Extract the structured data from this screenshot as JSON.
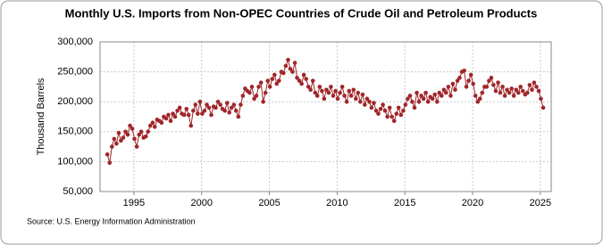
{
  "chart_data": {
    "type": "line",
    "title": "Monthly U.S. Imports from Non-OPEC Countries of Crude Oil and Petroleum Products",
    "y_label": "Thousand Barrels",
    "source": "Source: U.S. Energy Information Administration",
    "color": "#a0262a",
    "grid": true,
    "xlim": [
      1992.5,
      2025.8
    ],
    "xticks": [
      1995,
      2000,
      2005,
      2010,
      2015,
      2020,
      2025
    ],
    "ylim": [
      50000,
      300000
    ],
    "yticks": [
      {
        "value": 50000,
        "label": "50,000"
      },
      {
        "value": 100000,
        "label": "100,000"
      },
      {
        "value": 150000,
        "label": "150,000"
      },
      {
        "value": 200000,
        "label": "200,000"
      },
      {
        "value": 250000,
        "label": "250,000"
      },
      {
        "value": 300000,
        "label": "300,000"
      }
    ],
    "x": [
      1993.04,
      1993.21,
      1993.38,
      1993.54,
      1993.71,
      1993.88,
      1994.04,
      1994.21,
      1994.38,
      1994.54,
      1994.71,
      1994.88,
      1995.04,
      1995.21,
      1995.38,
      1995.54,
      1995.71,
      1995.88,
      1996.04,
      1996.21,
      1996.38,
      1996.54,
      1996.71,
      1996.88,
      1997.04,
      1997.21,
      1997.38,
      1997.54,
      1997.71,
      1997.88,
      1998.04,
      1998.21,
      1998.38,
      1998.54,
      1998.71,
      1998.88,
      1999.04,
      1999.21,
      1999.38,
      1999.54,
      1999.71,
      1999.88,
      2000.04,
      2000.21,
      2000.38,
      2000.54,
      2000.71,
      2000.88,
      2001.04,
      2001.21,
      2001.38,
      2001.54,
      2001.71,
      2001.88,
      2002.04,
      2002.21,
      2002.38,
      2002.54,
      2002.71,
      2002.88,
      2003.04,
      2003.21,
      2003.38,
      2003.54,
      2003.71,
      2003.88,
      2004.04,
      2004.21,
      2004.38,
      2004.54,
      2004.71,
      2004.88,
      2005.04,
      2005.21,
      2005.38,
      2005.54,
      2005.71,
      2005.88,
      2006.04,
      2006.21,
      2006.38,
      2006.54,
      2006.71,
      2006.88,
      2007.04,
      2007.21,
      2007.38,
      2007.54,
      2007.71,
      2007.88,
      2008.04,
      2008.21,
      2008.38,
      2008.54,
      2008.71,
      2008.88,
      2009.04,
      2009.21,
      2009.38,
      2009.54,
      2009.71,
      2009.88,
      2010.04,
      2010.21,
      2010.38,
      2010.54,
      2010.71,
      2010.88,
      2011.04,
      2011.21,
      2011.38,
      2011.54,
      2011.71,
      2011.88,
      2012.04,
      2012.21,
      2012.38,
      2012.54,
      2012.71,
      2012.88,
      2013.04,
      2013.21,
      2013.38,
      2013.54,
      2013.71,
      2013.88,
      2014.04,
      2014.21,
      2014.38,
      2014.54,
      2014.71,
      2014.88,
      2015.04,
      2015.21,
      2015.38,
      2015.54,
      2015.71,
      2015.88,
      2016.04,
      2016.21,
      2016.38,
      2016.54,
      2016.71,
      2016.88,
      2017.04,
      2017.21,
      2017.38,
      2017.54,
      2017.71,
      2017.88,
      2018.04,
      2018.21,
      2018.38,
      2018.54,
      2018.71,
      2018.88,
      2019.04,
      2019.21,
      2019.38,
      2019.54,
      2019.71,
      2019.88,
      2020.04,
      2020.21,
      2020.38,
      2020.54,
      2020.71,
      2020.88,
      2021.04,
      2021.21,
      2021.38,
      2021.54,
      2021.71,
      2021.88,
      2022.04,
      2022.21,
      2022.38,
      2022.54,
      2022.71,
      2022.88,
      2023.04,
      2023.21,
      2023.38,
      2023.54,
      2023.71,
      2023.88,
      2024.04,
      2024.21,
      2024.38,
      2024.54,
      2024.71,
      2024.88,
      2025.04,
      2025.21
    ],
    "values": [
      112000,
      98000,
      125000,
      138000,
      130000,
      148000,
      135000,
      140000,
      150000,
      145000,
      160000,
      155000,
      138000,
      125000,
      145000,
      150000,
      140000,
      142000,
      150000,
      160000,
      165000,
      158000,
      170000,
      168000,
      165000,
      175000,
      172000,
      178000,
      168000,
      180000,
      175000,
      185000,
      190000,
      180000,
      178000,
      188000,
      178000,
      160000,
      185000,
      195000,
      180000,
      200000,
      180000,
      185000,
      195000,
      190000,
      178000,
      192000,
      190000,
      200000,
      195000,
      188000,
      185000,
      198000,
      182000,
      190000,
      195000,
      185000,
      175000,
      195000,
      210000,
      222000,
      218000,
      215000,
      225000,
      205000,
      210000,
      225000,
      232000,
      200000,
      215000,
      235000,
      225000,
      238000,
      245000,
      230000,
      235000,
      250000,
      248000,
      260000,
      270000,
      255000,
      250000,
      265000,
      240000,
      235000,
      230000,
      245000,
      238000,
      225000,
      220000,
      235000,
      215000,
      210000,
      225000,
      218000,
      205000,
      220000,
      215000,
      225000,
      210000,
      218000,
      205000,
      215000,
      225000,
      210000,
      200000,
      218000,
      210000,
      220000,
      205000,
      215000,
      200000,
      212000,
      195000,
      205000,
      200000,
      190000,
      198000,
      185000,
      180000,
      188000,
      195000,
      185000,
      175000,
      190000,
      175000,
      168000,
      180000,
      190000,
      178000,
      185000,
      195000,
      205000,
      210000,
      200000,
      190000,
      215000,
      200000,
      210000,
      205000,
      215000,
      200000,
      208000,
      205000,
      212000,
      200000,
      215000,
      210000,
      220000,
      215000,
      225000,
      210000,
      230000,
      220000,
      235000,
      240000,
      250000,
      252000,
      225000,
      235000,
      245000,
      230000,
      210000,
      200000,
      205000,
      215000,
      225000,
      225000,
      235000,
      240000,
      228000,
      218000,
      232000,
      215000,
      225000,
      210000,
      220000,
      215000,
      222000,
      210000,
      220000,
      215000,
      225000,
      218000,
      212000,
      215000,
      228000,
      220000,
      232000,
      225000,
      218000,
      205000,
      190000
    ]
  }
}
